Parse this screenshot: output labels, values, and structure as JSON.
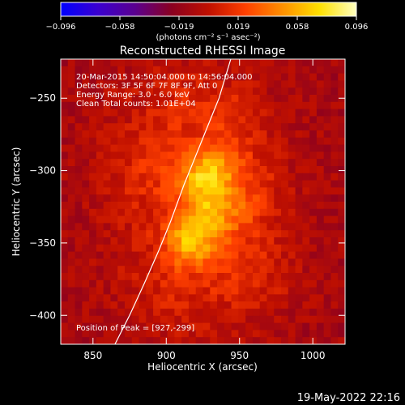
{
  "chart_data": {
    "type": "heatmap",
    "title": "Reconstructed RHESSI Image",
    "xlabel": "Heliocentric X (arcsec)",
    "ylabel": "Heliocentric Y (arcsec)",
    "xlim": [
      828,
      1022
    ],
    "ylim": [
      -420,
      -223
    ],
    "x_ticks": [
      850,
      900,
      950,
      1000
    ],
    "y_ticks": [
      -250,
      -300,
      -350,
      -400
    ],
    "annotations": [
      "20-Mar-2015 14:50:04.000 to 14:56:04.000",
      "Detectors: 3F 5F 6F 7F 8F 9F, Att 0",
      "Energy Range: 3.0 - 6.0 keV",
      "Clean      Total counts: 1.01E+04"
    ],
    "peak_label": "Position of Peak = [927,-299]",
    "colorbar": {
      "range": [
        -0.096,
        0.096
      ],
      "tick_labels": [
        "-0.096",
        "-0.058",
        "-0.019",
        "0.019",
        "0.058",
        "0.096"
      ],
      "unit": "(photons cm⁻² s⁻¹ asec⁻²)",
      "colors": [
        "#0000ff",
        "#3a00d0",
        "#5a0090",
        "#8a0020",
        "#c01000",
        "#ff4000",
        "#ff9000",
        "#ffe000",
        "#ffffc0"
      ]
    },
    "limb_curve": [
      [
        865,
        -420
      ],
      [
        875,
        -400
      ],
      [
        885,
        -378
      ],
      [
        895,
        -355
      ],
      [
        903,
        -335
      ],
      [
        912,
        -310
      ],
      [
        920,
        -290
      ],
      [
        928,
        -270
      ],
      [
        936,
        -250
      ],
      [
        944,
        -223
      ]
    ],
    "sources": [
      {
        "x": 928,
        "y": -302,
        "sx": 12,
        "sy": 11,
        "amp": 0.05
      },
      {
        "x": 930,
        "y": -328,
        "sx": 14,
        "sy": 13,
        "amp": 0.038
      },
      {
        "x": 916,
        "y": -350,
        "sx": 11,
        "sy": 11,
        "amp": 0.05
      },
      {
        "x": 922,
        "y": -322,
        "sx": 38,
        "sy": 58,
        "amp": 0.028
      },
      {
        "x": 955,
        "y": -318,
        "sx": 16,
        "sy": 24,
        "amp": 0.014
      },
      {
        "x": 945,
        "y": -265,
        "sx": 14,
        "sy": 16,
        "amp": 0.012
      },
      {
        "x": 958,
        "y": -375,
        "sx": 20,
        "sy": 16,
        "amp": 0.012
      },
      {
        "x": 880,
        "y": -295,
        "sx": 22,
        "sy": 20,
        "amp": 0.01
      },
      {
        "x": 905,
        "y": -250,
        "sx": 20,
        "sy": 16,
        "amp": 0.01
      },
      {
        "x": 900,
        "y": -385,
        "sx": 22,
        "sy": 18,
        "amp": 0.008
      }
    ],
    "background": -0.012
  },
  "timestamp": "19-May-2022 22:16"
}
